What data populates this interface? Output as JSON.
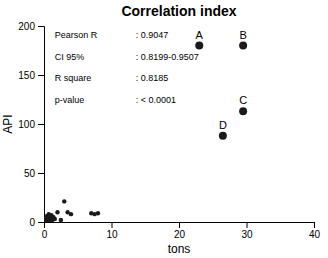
{
  "chart_data": {
    "type": "scatter",
    "title": "Correlation index",
    "x_label": "tons",
    "y_label": "API",
    "xlim": [
      0,
      40
    ],
    "ylim": [
      0,
      200
    ],
    "xticks": [
      0,
      10,
      20,
      30,
      40
    ],
    "yticks": [
      0,
      50,
      100,
      150,
      200
    ],
    "color": "#1a1a1a",
    "grid": false,
    "series": [
      {
        "x": [
          0.15,
          0.2,
          0.3,
          0.4,
          0.5,
          0.6,
          0.7,
          0.8,
          0.9,
          1.0,
          1.1,
          1.2,
          1.4,
          1.6,
          2.0,
          2.5,
          3.0,
          3.5,
          4.0,
          7.0,
          7.5,
          8.0
        ],
        "values": [
          1,
          4,
          2,
          6,
          2,
          3,
          8,
          5,
          2,
          4,
          7,
          2,
          5,
          3,
          10,
          2,
          21,
          10,
          8,
          9,
          8,
          9
        ]
      },
      {
        "x": [
          23.0,
          29.5,
          29.5,
          26.5
        ],
        "values": [
          180,
          180,
          113,
          88
        ],
        "labels": [
          "A",
          "B",
          "C",
          "D"
        ]
      }
    ],
    "annotations": [
      [
        "Pearson R",
        ": 0.9047"
      ],
      [
        "CI 95%",
        ": 0.8199-0.9507"
      ],
      [
        "R square",
        ": 0.8185"
      ],
      [
        "p-value",
        ": < 0.0001"
      ]
    ]
  }
}
